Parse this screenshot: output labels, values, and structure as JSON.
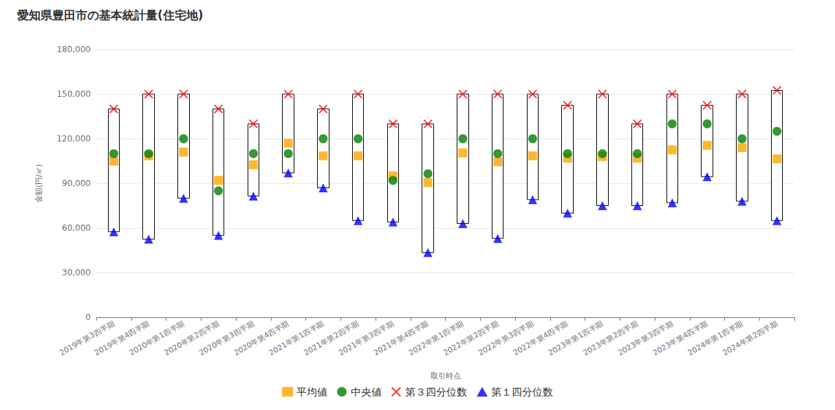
{
  "chart_data": {
    "type": "boxplot",
    "title": "愛知県豊田市の基本統計量(住宅地)",
    "x_label": "取引時点",
    "y_label": "金額(円/㎡)",
    "categories": [
      "2019年第3四半期",
      "2019年第4四半期",
      "2020年第1四半期",
      "2020年第2四半期",
      "2020年第3四半期",
      "2020年第4四半期",
      "2021年第1四半期",
      "2021年第2四半期",
      "2021年第3四半期",
      "2021年第4四半期",
      "2022年第1四半期",
      "2022年第2四半期",
      "2022年第3四半期",
      "2022年第4四半期",
      "2023年第1四半期",
      "2023年第2四半期",
      "2023年第3四半期",
      "2023年第4四半期",
      "2024年第1四半期",
      "2024年第2四半期"
    ],
    "series": [
      {
        "name": "平均値",
        "color": "#ffa500",
        "marker": "square",
        "values": [
          105000,
          108500,
          111000,
          92000,
          102500,
          117000,
          108500,
          108500,
          95000,
          90500,
          110500,
          104500,
          108500,
          107000,
          108000,
          107000,
          112500,
          115500,
          114000,
          106500
        ]
      },
      {
        "name": "中央値",
        "color": "#008000",
        "marker": "circle",
        "values": [
          110000,
          110000,
          120000,
          85000,
          110000,
          110000,
          120000,
          120000,
          92000,
          96500,
          120000,
          110000,
          120000,
          110000,
          110000,
          110000,
          130000,
          130000,
          120000,
          125000
        ]
      },
      {
        "name": "第３四分位数",
        "color": "#ff0000",
        "marker": "x",
        "values": [
          140000,
          150000,
          150000,
          140000,
          130000,
          150000,
          140000,
          150000,
          130000,
          130000,
          150000,
          150000,
          150000,
          142500,
          150000,
          130000,
          150000,
          142500,
          150000,
          152500
        ]
      },
      {
        "name": "第１四分位数",
        "color": "#0000ff",
        "marker": "triangle",
        "values": [
          57500,
          52500,
          80000,
          55000,
          81500,
          97000,
          87000,
          65000,
          64000,
          43500,
          63000,
          53000,
          79000,
          70000,
          75000,
          75000,
          77000,
          94500,
          78000,
          65000
        ]
      }
    ],
    "ylim": [
      0,
      180000
    ],
    "yticks": [
      0,
      {
        "value": 30000,
        "label": "30,000"
      },
      {
        "value": 60000,
        "label": "60,000"
      },
      {
        "value": 90000,
        "label": "90,000"
      },
      {
        "value": 120000,
        "label": "120,000"
      },
      {
        "value": 150000,
        "label": "150,000"
      },
      {
        "value": 180000,
        "label": "180,000"
      }
    ],
    "grid": true,
    "legend": "bottom"
  }
}
